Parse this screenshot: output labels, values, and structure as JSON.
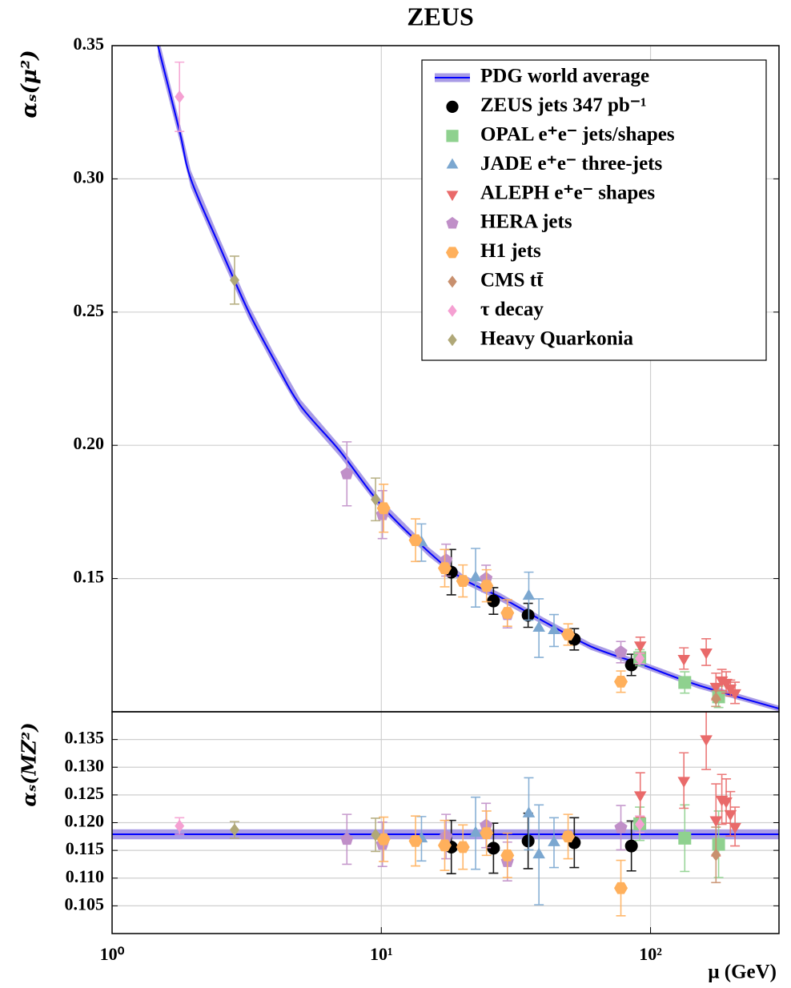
{
  "chart_data": [
    {
      "type": "scatter",
      "title": "ZEUS",
      "ylabel": "αₛ(μ²)",
      "ylim": [
        0.1,
        0.35
      ],
      "yticks": [
        0.15,
        {
          "value": 0.2,
          "label": "0.20"
        },
        0.25,
        {
          "value": 0.3,
          "label": "0.30"
        },
        0.35
      ],
      "grid": true,
      "legend": "upper right",
      "band": {
        "name": "PDG world average",
        "color": "#0000ff",
        "band_color": "#a99ce6",
        "x": [
          1.48,
          1.78,
          1.96,
          2.5,
          3.22,
          4,
          5,
          7,
          10,
          15,
          20,
          27.7,
          40,
          60,
          91.2,
          150,
          300
        ],
        "values": [
          0.35,
          0.318,
          0.3,
          0.275,
          0.25,
          0.232,
          0.215,
          0.198,
          0.1775,
          0.16,
          0.15,
          0.143,
          0.134,
          0.1245,
          0.118,
          0.11,
          0.1012
        ],
        "errors": [
          0.004,
          0.0035,
          0.0032,
          0.003,
          0.0027,
          0.0025,
          0.0023,
          0.0021,
          0.0019,
          0.0017,
          0.0016,
          0.0015,
          0.0014,
          0.0013,
          0.0012,
          0.0012,
          0.0011
        ]
      },
      "series": [
        {
          "name": "ZEUS jets 347 pb⁻¹",
          "color": "#000000",
          "marker": "circle",
          "x": [
            18.2,
            26.1,
            35.1,
            52.1,
            84.9
          ],
          "values": [
            0.1524,
            0.1416,
            0.1362,
            0.1272,
            0.1176
          ],
          "errors": [
            0.0085,
            0.005,
            0.0045,
            0.004,
            0.004
          ]
        },
        {
          "name": "OPAL e⁺e⁻ jets/shapes",
          "color": "#8fd18f",
          "marker": "square",
          "x": [
            91.2,
            134,
            179
          ],
          "values": [
            0.1203,
            0.111,
            0.1056
          ],
          "errors": [
            0.003,
            0.004,
            0.004
          ]
        },
        {
          "name": "JADE e⁺e⁻ three-jets",
          "color": "#7ba7d0",
          "marker": "triangle-up",
          "x": [
            14.1,
            22.4,
            35.3,
            38.5,
            43.8
          ],
          "values": [
            0.1635,
            0.1503,
            0.1434,
            0.1314,
            0.1305
          ],
          "errors": [
            0.007,
            0.011,
            0.009,
            0.011,
            0.006
          ]
        },
        {
          "name": "ALEPH e⁺e⁻ shapes",
          "color": "#e96a6a",
          "marker": "triangle-down",
          "x": [
            91.6,
            133,
            161,
            175,
            184,
            191,
            198,
            206
          ],
          "values": [
            0.125,
            0.12,
            0.1224,
            0.1095,
            0.1119,
            0.111,
            0.1089,
            0.1071
          ],
          "errors": [
            0.003,
            0.004,
            0.005,
            0.005,
            0.004,
            0.004,
            0.003,
            0.004
          ]
        },
        {
          "name": "HERA jets",
          "color": "#c08fc8",
          "marker": "pentagon",
          "x": [
            7.45,
            10.1,
            17.4,
            24.5,
            29.4,
            77.6
          ],
          "values": [
            0.1893,
            0.174,
            0.1569,
            0.15,
            0.1365,
            0.1224
          ],
          "errors": [
            0.012,
            0.009,
            0.006,
            0.005,
            0.005,
            0.004
          ]
        },
        {
          "name": "H1 jets",
          "color": "#ffb05c",
          "marker": "hexagon",
          "x": [
            10.2,
            13.4,
            17.2,
            20.1,
            24.6,
            29.4,
            49.4,
            77.6
          ],
          "values": [
            0.1764,
            0.1644,
            0.1539,
            0.1491,
            0.1473,
            0.1371,
            0.129,
            0.1113
          ],
          "errors": [
            0.009,
            0.008,
            0.007,
            0.006,
            0.006,
            0.005,
            0.004,
            0.004
          ]
        },
        {
          "name": "CMS tt̄",
          "color": "#c8906e",
          "marker": "diamond",
          "x": [
            175
          ],
          "values": [
            0.105
          ],
          "errors": [
            0.003
          ]
        },
        {
          "name": "τ decay",
          "color": "#f5a0d2",
          "marker": "diamond",
          "x": [
            1.78,
            91.2
          ],
          "values": [
            0.3308,
            0.12
          ],
          "errors": [
            0.013,
            0.002
          ]
        },
        {
          "name": "Heavy Quarkonia",
          "color": "#b0a878",
          "marker": "diamond",
          "x": [
            2.85,
            9.52
          ],
          "values": [
            0.262,
            0.1797
          ],
          "errors": [
            0.009,
            0.008
          ]
        }
      ]
    },
    {
      "type": "scatter",
      "ylabel": "αₛ(MZ²)",
      "xlabel": "μ (GeV)",
      "xscale": "log",
      "xlim": [
        1,
        300
      ],
      "xticks": [
        {
          "value": 1,
          "label": "10⁰"
        },
        {
          "value": 10,
          "label": "10¹"
        },
        {
          "value": 100,
          "label": "10²"
        }
      ],
      "ylim": [
        0.1,
        0.14
      ],
      "yticks": [
        0.105,
        {
          "value": 0.11,
          "label": "0.110"
        },
        0.115,
        {
          "value": 0.12,
          "label": "0.120"
        },
        0.125,
        {
          "value": 0.13,
          "label": "0.130"
        },
        0.135
      ],
      "grid": true,
      "reference": {
        "value": 0.1179,
        "error": 0.0009
      },
      "series": [
        {
          "x": [
            18.2,
            26.1,
            35.1,
            52.1,
            84.9
          ],
          "values": [
            0.1156,
            0.1154,
            0.1167,
            0.1164,
            0.1158
          ],
          "errors": [
            0.0048,
            0.0045,
            0.005,
            0.0045,
            0.0045
          ]
        },
        {
          "x": [
            91.2,
            134,
            179
          ],
          "values": [
            0.1198,
            0.1172,
            0.1161
          ],
          "errors": [
            0.003,
            0.006,
            0.006
          ]
        },
        {
          "x": [
            14.1,
            22.4,
            35.3,
            38.5,
            43.8
          ],
          "values": [
            0.1171,
            0.1181,
            0.1216,
            0.1142,
            0.1164
          ],
          "errors": [
            0.004,
            0.0065,
            0.0065,
            0.009,
            0.0045
          ]
        },
        {
          "x": [
            91.6,
            133,
            161,
            175,
            184,
            191,
            198,
            206
          ],
          "values": [
            0.125,
            0.1276,
            0.1351,
            0.1205,
            0.1242,
            0.1239,
            0.1216,
            0.1193
          ],
          "errors": [
            0.004,
            0.005,
            0.0055,
            0.0065,
            0.0045,
            0.004,
            0.004,
            0.0035
          ]
        },
        {
          "x": [
            7.45,
            10.1,
            17.4,
            24.5,
            29.4,
            77.6
          ],
          "values": [
            0.117,
            0.1161,
            0.1175,
            0.1195,
            0.113,
            0.1191
          ],
          "errors": [
            0.0045,
            0.004,
            0.004,
            0.004,
            0.0035,
            0.004
          ]
        },
        {
          "x": [
            10.2,
            13.4,
            17.2,
            20.1,
            24.6,
            29.4,
            49.4,
            77.6
          ],
          "values": [
            0.117,
            0.1167,
            0.1159,
            0.1156,
            0.1181,
            0.1141,
            0.1175,
            0.1082
          ],
          "errors": [
            0.004,
            0.0045,
            0.0045,
            0.004,
            0.004,
            0.004,
            0.004,
            0.005
          ]
        },
        {
          "x": [
            175
          ],
          "values": [
            0.1142
          ],
          "errors": [
            0.005
          ]
        },
        {
          "x": [
            1.78,
            91.2
          ],
          "values": [
            0.1194,
            0.1197
          ],
          "errors": [
            0.0015,
            0.0015
          ]
        },
        {
          "x": [
            2.85,
            9.52
          ],
          "values": [
            0.1187,
            0.1178
          ],
          "errors": [
            0.0015,
            0.003
          ]
        }
      ]
    }
  ]
}
